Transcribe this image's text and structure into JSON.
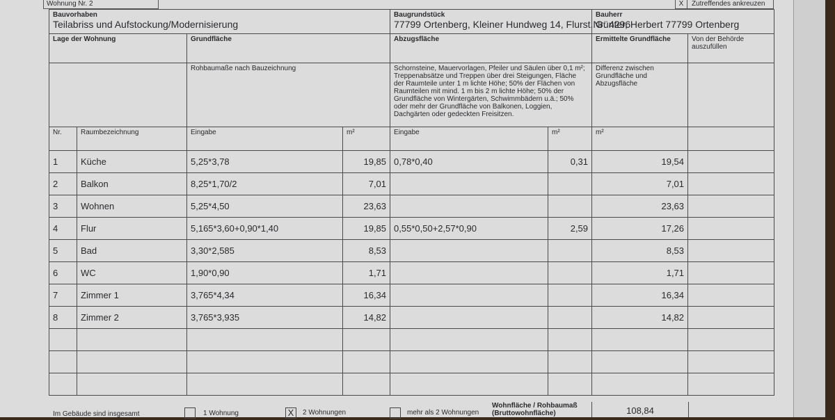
{
  "top": {
    "wohnung_label": "Wohnung Nr.",
    "wohnung_nr": "2",
    "hint_mark": "X",
    "hint_text": "Zutreffendes ankreuzen"
  },
  "header": {
    "bauvorhaben_label": "Bauvorhaben",
    "bauvorhaben": "Teilabriss und Aufstockung/Modernisierung",
    "baugrundstueck_label": "Baugrundstück",
    "baugrundstueck": "77799  Ortenberg, Kleiner Hundweg 14, Flurst.Nr: 4296",
    "bauherr_label": "Bauherr",
    "bauherr": "Günter, Herbert  77799 Ortenberg"
  },
  "columns": {
    "lage": "Lage der Wohnung",
    "grundflaeche": "Grundfläche",
    "abzugsflaeche": "Abzugsfläche",
    "ermittelte": "Ermittelte Grundfläche",
    "behoerde": "Von der Behörde auszufüllen",
    "rohbau": "Rohbaumaße nach Bauzeichnung",
    "abzug_desc": "Schornsteine, Mauervorlagen, Pfeiler und Säulen über 0,1 m²; Treppenabsätze und Treppen über drei Steigungen, Fläche der Raumteile unter 1 m lichte Höhe; 50% der Flächen von Raumteilen mit mind. 1 m bis 2 m lichte Höhe; 50% der Grundfläche von Wintergärten, Schwimmbädern u.ä.; 50% oder mehr der Grundfläche von Balkonen, Loggien, Dachgärten oder gedeckten Freisitzen.",
    "differenz": "Differenz zwischen Grundfläche und Abzugsfläche",
    "nr": "Nr.",
    "raum": "Raumbezeichnung",
    "eingabe": "Eingabe",
    "m2": "m²"
  },
  "rows": [
    {
      "nr": "1",
      "raum": "Küche",
      "eingabe": "5,25*3,78",
      "m2": "19,85",
      "abzug": "0,78*0,40",
      "abzug_m2": "0,31",
      "ergebnis": "19,54"
    },
    {
      "nr": "2",
      "raum": "Balkon",
      "eingabe": "8,25*1,70/2",
      "m2": "7,01",
      "abzug": "",
      "abzug_m2": "",
      "ergebnis": "7,01"
    },
    {
      "nr": "3",
      "raum": "Wohnen",
      "eingabe": "5,25*4,50",
      "m2": "23,63",
      "abzug": "",
      "abzug_m2": "",
      "ergebnis": "23,63"
    },
    {
      "nr": "4",
      "raum": "Flur",
      "eingabe": "5,165*3,60+0,90*1,40",
      "m2": "19,85",
      "abzug": "0,55*0,50+2,57*0,90",
      "abzug_m2": "2,59",
      "ergebnis": "17,26"
    },
    {
      "nr": "5",
      "raum": "Bad",
      "eingabe": "3,30*2,585",
      "m2": "8,53",
      "abzug": "",
      "abzug_m2": "",
      "ergebnis": "8,53"
    },
    {
      "nr": "6",
      "raum": "WC",
      "eingabe": "1,90*0,90",
      "m2": "1,71",
      "abzug": "",
      "abzug_m2": "",
      "ergebnis": "1,71"
    },
    {
      "nr": "7",
      "raum": "Zimmer 1",
      "eingabe": "3,765*4,34",
      "m2": "16,34",
      "abzug": "",
      "abzug_m2": "",
      "ergebnis": "16,34"
    },
    {
      "nr": "8",
      "raum": "Zimmer 2",
      "eingabe": "3,765*3,935",
      "m2": "14,82",
      "abzug": "",
      "abzug_m2": "",
      "ergebnis": "14,82"
    }
  ],
  "footer": {
    "insgesamt": "Im Gebäude sind insgesamt",
    "opt1": "1 Wohnung",
    "opt2": "2 Wohnungen",
    "opt3": "mehr als 2 Wohnungen",
    "opt2_checked": "X",
    "wohnflaeche_label": "Wohnfläche / Rohbaumaß (Bruttowohnfläche)",
    "total": "108,84"
  }
}
